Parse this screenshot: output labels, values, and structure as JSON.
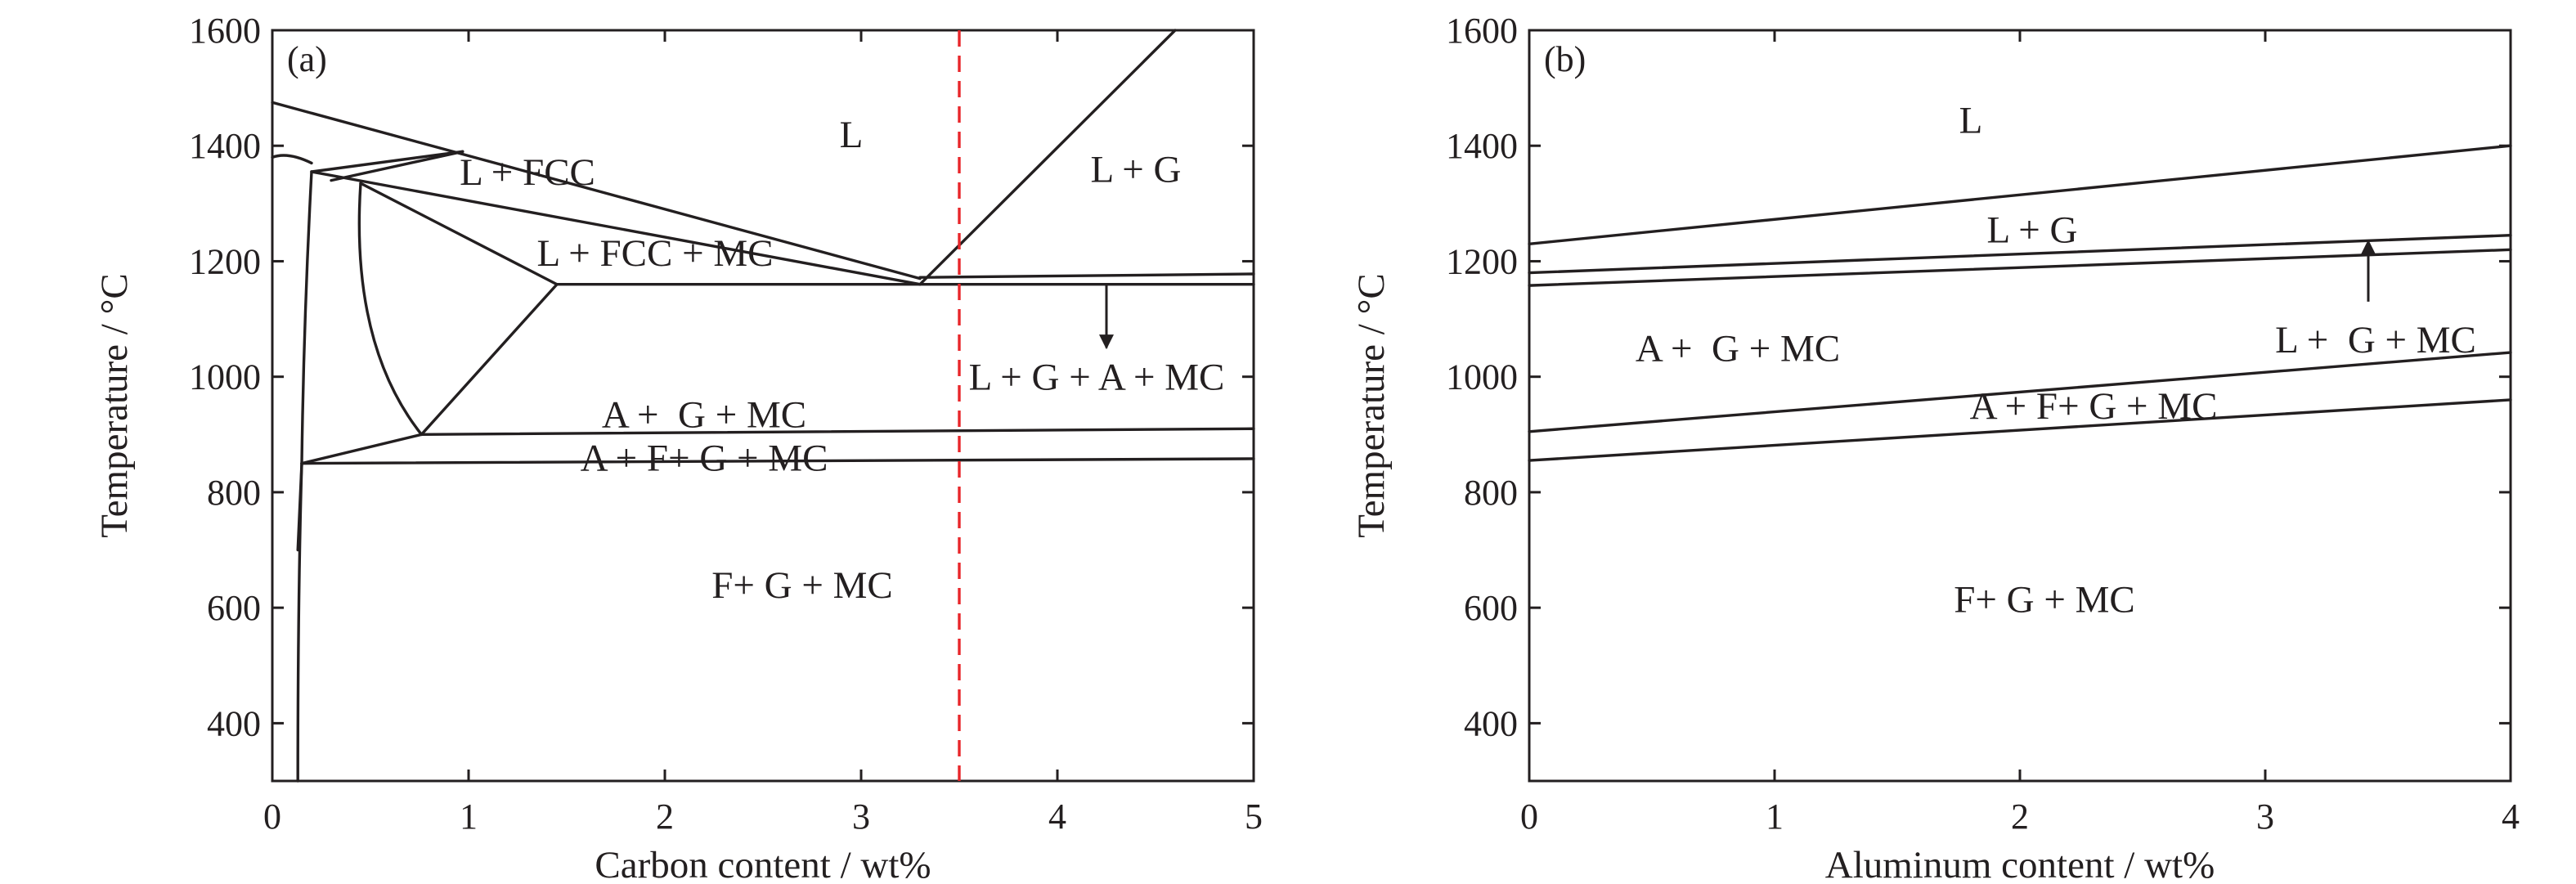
{
  "chart_data": [
    {
      "type": "line",
      "panel_label": "(a)",
      "xlabel": "Carbon content / wt%",
      "ylabel": "Temperature / °C",
      "xlim": [
        0,
        5
      ],
      "ylim": [
        300,
        1600
      ],
      "xticks": [
        "0",
        "1",
        "2",
        "3",
        "4",
        "5"
      ],
      "yticks": [
        "400",
        "600",
        "800",
        "1000",
        "1200",
        "1400",
        "1600"
      ],
      "grid": false,
      "reference_line": {
        "x": 3.5,
        "style": "dashed",
        "color": "#e8262a"
      },
      "boundaries": [
        {
          "x": [
            0,
            3.3
          ],
          "y": [
            1475,
            1170
          ]
        },
        {
          "x": [
            0,
            0.08,
            0.2
          ],
          "y": [
            1380,
            1390,
            1370
          ]
        },
        {
          "x": [
            0.2,
            0.97
          ],
          "y": [
            1355,
            1390
          ]
        },
        {
          "x": [
            0.3,
            0.97
          ],
          "y": [
            1340,
            1390
          ]
        },
        {
          "x": [
            0.2,
            3.3
          ],
          "y": [
            1355,
            1160
          ]
        },
        {
          "x": [
            0.45,
            1.45
          ],
          "y": [
            1335,
            1160
          ]
        },
        {
          "x": [
            0.2,
            0.16,
            0.15
          ],
          "y": [
            1355,
            1100,
            850
          ]
        },
        {
          "x": [
            0.45,
            0.42,
            0.48,
            0.76
          ],
          "y": [
            1335,
            1180,
            1020,
            900
          ]
        },
        {
          "x": [
            0.76,
            1.45
          ],
          "y": [
            900,
            1160
          ]
        },
        {
          "x": [
            1.45,
            5
          ],
          "y": [
            1160,
            1160
          ]
        },
        {
          "x": [
            3.3,
            5
          ],
          "y": [
            1172,
            1178
          ]
        },
        {
          "x": [
            3.3,
            4.6
          ],
          "y": [
            1160,
            1600
          ]
        },
        {
          "x": [
            0.15,
            0.76
          ],
          "y": [
            850,
            900
          ]
        },
        {
          "x": [
            0.76,
            5
          ],
          "y": [
            900,
            910
          ]
        },
        {
          "x": [
            0.15,
            5
          ],
          "y": [
            850,
            858
          ]
        },
        {
          "x": [
            0.15,
            0.13,
            0.13
          ],
          "y": [
            850,
            620,
            300
          ]
        },
        {
          "x": [
            0.15,
            0.13
          ],
          "y": [
            850,
            700
          ]
        }
      ],
      "annotation_arrow": {
        "from": [
          4.25,
          1160
        ],
        "to": [
          4.25,
          1050
        ]
      },
      "regions": [
        {
          "text": "L",
          "x": 2.95,
          "y": 1420
        },
        {
          "text": "L + G",
          "x": 4.4,
          "y": 1360
        },
        {
          "text": "L + FCC",
          "x": 1.3,
          "y": 1355
        },
        {
          "text": "L + FCC + MC",
          "x": 1.95,
          "y": 1215
        },
        {
          "text": "L + G + A + MC",
          "x": 4.2,
          "y": 1000
        },
        {
          "text": "A +  G + MC",
          "x": 2.2,
          "y": 935
        },
        {
          "text": "A + F+ G + MC",
          "x": 2.2,
          "y": 860
        },
        {
          "text": "F+ G + MC",
          "x": 2.7,
          "y": 640
        }
      ]
    },
    {
      "type": "line",
      "panel_label": "(b)",
      "xlabel": "Aluminum content / wt%",
      "ylabel": "Temperature / °C",
      "xlim": [
        0,
        4
      ],
      "ylim": [
        300,
        1600
      ],
      "xticks": [
        "0",
        "1",
        "2",
        "3",
        "4"
      ],
      "yticks": [
        "400",
        "600",
        "800",
        "1000",
        "1200",
        "1400",
        "1600"
      ],
      "grid": false,
      "boundaries": [
        {
          "x": [
            0,
            4
          ],
          "y": [
            1230,
            1400
          ]
        },
        {
          "x": [
            0,
            4
          ],
          "y": [
            1180,
            1245
          ]
        },
        {
          "x": [
            0,
            4
          ],
          "y": [
            1158,
            1220
          ]
        },
        {
          "x": [
            0,
            4
          ],
          "y": [
            905,
            1042
          ]
        },
        {
          "x": [
            0,
            4
          ],
          "y": [
            855,
            960
          ]
        }
      ],
      "annotation_arrow": {
        "from": [
          3.42,
          1130
        ],
        "to": [
          3.42,
          1235
        ]
      },
      "regions": [
        {
          "text": "L",
          "x": 1.8,
          "y": 1445
        },
        {
          "text": "L + G",
          "x": 2.05,
          "y": 1255
        },
        {
          "text": "A +  G + MC",
          "x": 0.85,
          "y": 1050
        },
        {
          "text": "L +  G + MC",
          "x": 3.45,
          "y": 1065
        },
        {
          "text": "A + F+ G + MC",
          "x": 2.3,
          "y": 950
        },
        {
          "text": "F+ G + MC",
          "x": 2.1,
          "y": 615
        }
      ]
    }
  ]
}
